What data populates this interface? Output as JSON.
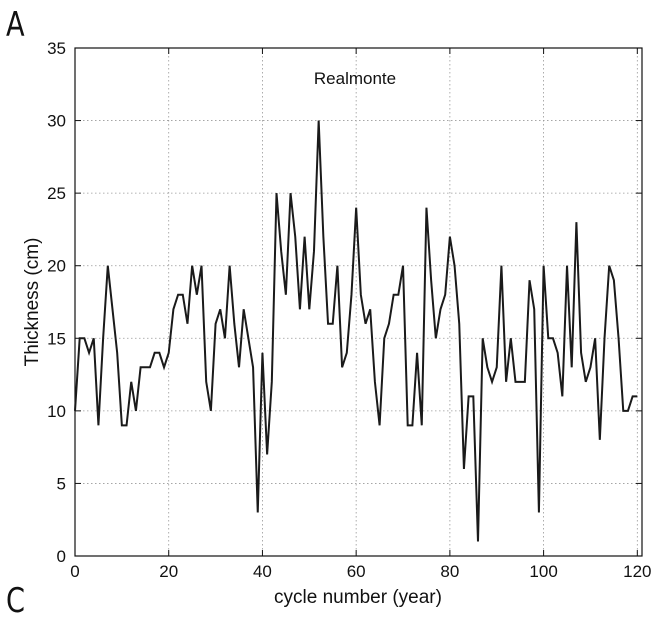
{
  "panels": {
    "top_letter": "A",
    "bottom_letter": "C"
  },
  "chart_data": {
    "type": "line",
    "title": "Realmonte",
    "xlabel": "cycle number (year)",
    "ylabel": "Thickness (cm)",
    "xlim": [
      0,
      121
    ],
    "ylim": [
      0,
      35
    ],
    "xticks": [
      0,
      20,
      40,
      60,
      80,
      100,
      120
    ],
    "yticks": [
      0,
      5,
      10,
      15,
      20,
      25,
      30,
      35
    ],
    "grid": true,
    "line_color": "#1a1a1a",
    "series": [
      {
        "x": [
          0,
          1,
          2,
          3,
          4,
          5,
          6,
          7,
          8,
          9,
          10,
          11,
          12,
          13,
          14,
          15,
          16,
          17,
          18,
          19,
          20,
          21,
          22,
          23,
          24,
          25,
          26,
          27,
          28,
          29,
          30,
          31,
          32,
          33,
          34,
          35,
          36,
          37,
          38,
          39,
          40,
          41,
          42,
          43,
          44,
          45,
          46,
          47,
          48,
          49,
          50,
          51,
          52,
          53,
          54,
          55,
          56,
          57,
          58,
          59,
          60,
          61,
          62,
          63,
          64,
          65,
          66,
          67,
          68,
          69,
          70,
          71,
          72,
          73,
          74,
          75,
          76,
          77,
          78,
          79,
          80,
          81,
          82,
          83,
          84,
          85,
          86,
          87,
          88,
          89,
          90,
          91,
          92,
          93,
          94,
          95,
          96,
          97,
          98,
          99,
          100,
          101,
          102,
          103,
          104,
          105,
          106,
          107,
          108,
          109,
          110,
          111,
          112,
          113,
          114,
          115,
          116,
          117,
          118,
          119,
          120
        ],
        "y": [
          10,
          15,
          15,
          14,
          15,
          9,
          15,
          20,
          17,
          14,
          9,
          9,
          12,
          10,
          13,
          13,
          13,
          14,
          14,
          13,
          14,
          17,
          18,
          18,
          16,
          20,
          18,
          20,
          12,
          10,
          16,
          17,
          15,
          20,
          16,
          13,
          17,
          15,
          13,
          3,
          14,
          7,
          12,
          25,
          21,
          18,
          25,
          22,
          17,
          22,
          17,
          21,
          30,
          22,
          16,
          16,
          20,
          13,
          14,
          18,
          24,
          18,
          16,
          17,
          12,
          9,
          15,
          16,
          18,
          18,
          20,
          9,
          9,
          14,
          9,
          24,
          19,
          15,
          17,
          18,
          22,
          20,
          16,
          6,
          11,
          11,
          1,
          15,
          13,
          12,
          13,
          20,
          12,
          15,
          12,
          12,
          12,
          19,
          17,
          3,
          20,
          15,
          15,
          14,
          11,
          20,
          13,
          23,
          14,
          12,
          13,
          15,
          8,
          15,
          20,
          19,
          15,
          10,
          10,
          11,
          11
        ]
      }
    ]
  }
}
